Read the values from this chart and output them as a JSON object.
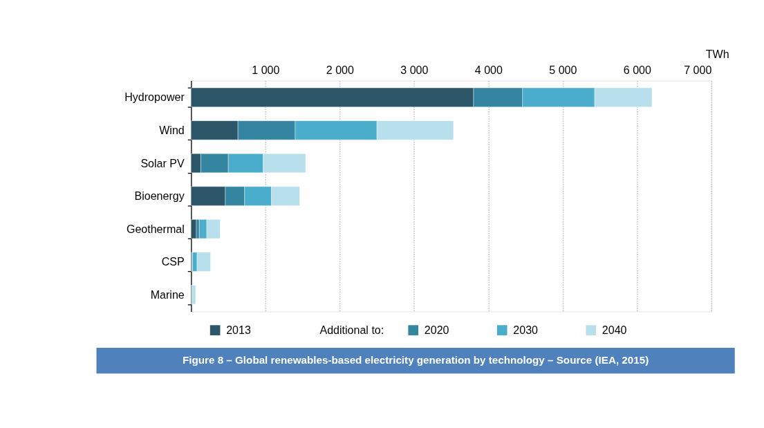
{
  "chart_data": {
    "type": "bar",
    "orientation": "horizontal",
    "stacked": true,
    "title": "Figure 8 – Global renewables-based electricity generation by technology – Source (IEA, 2015)",
    "xlabel": "TWh",
    "annotations": [
      "Additional to:"
    ],
    "categories": [
      "Hydropower",
      "Wind",
      "Solar PV",
      "Bioenergy",
      "Geothermal",
      "CSP",
      "Marine"
    ],
    "series": [
      {
        "name": "2013",
        "color": "#2b5769",
        "values": [
          3800,
          630,
          130,
          460,
          70,
          10,
          10
        ]
      },
      {
        "name": "2020",
        "color": "#3385a0",
        "values": [
          660,
          770,
          370,
          260,
          40,
          10,
          null
        ]
      },
      {
        "name": "2030",
        "color": "#4aadcb",
        "values": [
          970,
          1100,
          470,
          360,
          100,
          60,
          null
        ]
      },
      {
        "name": "2040",
        "color": "#b7dfec",
        "values": [
          770,
          1030,
          570,
          380,
          180,
          180,
          50
        ]
      }
    ],
    "xlim": [
      0,
      7000
    ],
    "xticks": [
      1000,
      2000,
      3000,
      4000,
      5000,
      6000,
      7000
    ],
    "grid": "x",
    "legend": "bottom"
  }
}
